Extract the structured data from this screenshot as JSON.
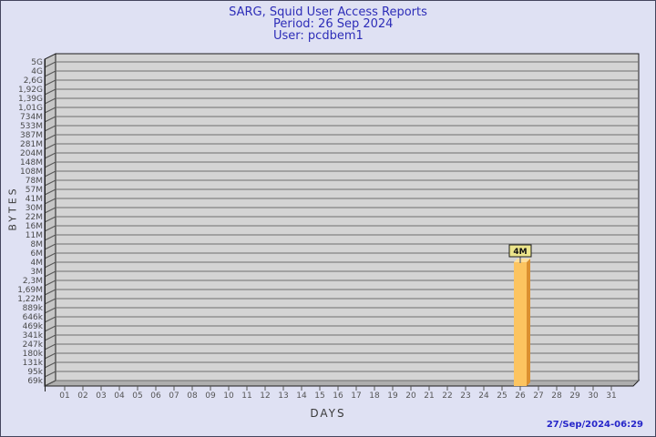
{
  "header": {
    "title": "SARG, Squid User Access Reports",
    "period": "Period: 26 Sep 2024",
    "user": "User: pcdbem1"
  },
  "footer": {
    "generated_timestamp": "27/Sep/2024-06:29"
  },
  "chart_data": {
    "type": "bar",
    "title": "SARG, Squid User Access Reports",
    "subtitle": "Period: 26 Sep 2024",
    "series_user": "User: pcdbem1",
    "xlabel": "DAYS",
    "ylabel": "BYTES",
    "grid": true,
    "y_tick_labels": [
      "5G",
      "4G",
      "2,6G",
      "1,92G",
      "1,39G",
      "1,01G",
      "734M",
      "533M",
      "387M",
      "281M",
      "204M",
      "148M",
      "108M",
      "78M",
      "57M",
      "41M",
      "30M",
      "22M",
      "16M",
      "11M",
      "8M",
      "6M",
      "4M",
      "3M",
      "2,3M",
      "1,69M",
      "1,22M",
      "889k",
      "646k",
      "469k",
      "341k",
      "247k",
      "180k",
      "131k",
      "95k",
      "69k"
    ],
    "x_tick_labels": [
      "01",
      "02",
      "03",
      "04",
      "05",
      "06",
      "07",
      "08",
      "09",
      "10",
      "11",
      "12",
      "13",
      "14",
      "15",
      "16",
      "17",
      "18",
      "19",
      "20",
      "21",
      "22",
      "23",
      "24",
      "25",
      "26",
      "27",
      "28",
      "29",
      "30",
      "31"
    ],
    "bars": [
      {
        "day": "26",
        "label": "4M",
        "value_tick": "4M",
        "value_bytes_approx": 4000000
      }
    ],
    "colors": {
      "background": "#dfe1f3",
      "title_text": "#2d2db8",
      "plot_bg": "#d4d4d4",
      "grid_line": "#6e6e6e",
      "wall": "#c6c6c6",
      "floor": "#aeaeae",
      "frame_stroke": "#1c1c1c",
      "tick_text": "#4a4a4a",
      "bar_face": "#fcc460",
      "bar_side": "#db9030",
      "bar_top": "#ffdf9b",
      "value_box_bg": "#ece58c",
      "timestamp_text": "#2626c9"
    }
  }
}
